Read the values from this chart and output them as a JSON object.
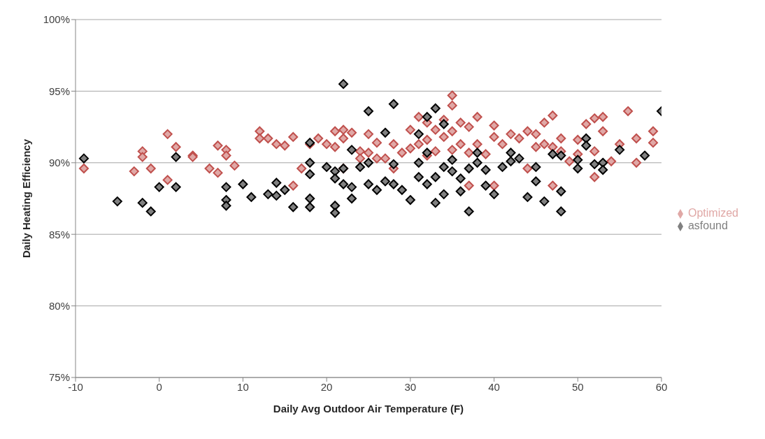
{
  "chart_data": {
    "type": "scatter",
    "xlabel": "Daily Avg Outdoor Air Temperature (F)",
    "ylabel": "Daily Heating Efficiency",
    "xlim": [
      -10,
      60
    ],
    "xticks": [
      -10,
      0,
      10,
      20,
      30,
      40,
      50,
      60
    ],
    "ylim": [
      75,
      100
    ],
    "yticks": [
      {
        "value": 75,
        "label": "75%"
      },
      {
        "value": 80,
        "label": "80%"
      },
      {
        "value": 85,
        "label": "85%"
      },
      {
        "value": 90,
        "label": "90%"
      },
      {
        "value": 95,
        "label": "95%"
      },
      {
        "value": 100,
        "label": "100%"
      }
    ],
    "grid": "y",
    "legend": "right",
    "marker": "diamond",
    "series": [
      {
        "name": "Optimized",
        "color": "#c0504d",
        "x": [
          -9,
          -3,
          -2,
          -2,
          -1,
          1,
          1,
          2,
          4,
          4,
          6,
          7,
          7,
          8,
          8,
          9,
          12,
          12,
          13,
          14,
          15,
          16,
          16,
          17,
          18,
          19,
          20,
          21,
          21,
          22,
          22,
          22,
          23,
          24,
          24,
          25,
          25,
          26,
          26,
          27,
          28,
          28,
          29,
          30,
          30,
          31,
          31,
          32,
          32,
          32,
          33,
          33,
          34,
          34,
          35,
          35,
          35,
          35,
          36,
          36,
          37,
          37,
          37,
          38,
          38,
          39,
          40,
          40,
          40,
          41,
          42,
          43,
          44,
          44,
          45,
          45,
          46,
          46,
          47,
          47,
          47,
          48,
          48,
          49,
          50,
          50,
          51,
          52,
          52,
          52,
          53,
          53,
          54,
          55,
          56,
          57,
          57,
          59,
          59
        ],
        "values": [
          89.6,
          89.4,
          90.8,
          90.4,
          89.6,
          92.0,
          88.8,
          91.1,
          90.5,
          90.4,
          89.6,
          91.2,
          89.3,
          90.9,
          90.5,
          89.8,
          92.2,
          91.7,
          91.7,
          91.3,
          91.2,
          91.8,
          88.4,
          89.6,
          91.3,
          91.7,
          91.3,
          92.2,
          91.1,
          92.3,
          91.7,
          89.6,
          92.1,
          90.8,
          90.3,
          92.0,
          90.7,
          91.4,
          90.3,
          90.3,
          91.3,
          89.6,
          90.7,
          92.3,
          91.0,
          93.2,
          91.3,
          92.8,
          91.6,
          90.5,
          92.3,
          90.8,
          93.0,
          91.8,
          94.7,
          94.0,
          92.2,
          90.9,
          92.8,
          91.3,
          92.5,
          90.7,
          88.4,
          93.2,
          91.3,
          90.6,
          92.6,
          91.8,
          88.4,
          91.3,
          92.0,
          91.7,
          92.2,
          89.6,
          92.0,
          91.1,
          92.8,
          91.3,
          93.3,
          91.1,
          88.4,
          91.7,
          90.8,
          90.1,
          91.6,
          90.6,
          92.7,
          93.1,
          89.0,
          90.8,
          92.2,
          93.2,
          90.1,
          91.3,
          93.6,
          90.0,
          91.7,
          92.2,
          91.4
        ]
      },
      {
        "name": "asfound",
        "color": "#000000",
        "x": [
          -9,
          -5,
          -2,
          -1,
          0,
          2,
          2,
          8,
          8,
          8,
          10,
          11,
          13,
          14,
          14,
          15,
          16,
          18,
          18,
          18,
          18,
          18,
          20,
          21,
          21,
          21,
          21,
          22,
          22,
          22,
          23,
          23,
          23,
          24,
          25,
          25,
          25,
          26,
          27,
          27,
          28,
          28,
          28,
          29,
          30,
          31,
          31,
          31,
          32,
          32,
          32,
          33,
          33,
          33,
          34,
          34,
          34,
          35,
          35,
          36,
          36,
          37,
          37,
          38,
          38,
          39,
          39,
          40,
          41,
          42,
          42,
          43,
          44,
          45,
          45,
          46,
          47,
          48,
          48,
          48,
          50,
          50,
          51,
          51,
          52,
          53,
          53,
          55,
          58,
          60
        ],
        "values": [
          90.3,
          87.3,
          87.2,
          86.6,
          88.3,
          90.4,
          88.3,
          88.3,
          87.4,
          87.0,
          88.5,
          87.6,
          87.8,
          88.6,
          87.7,
          88.1,
          86.9,
          91.4,
          90.0,
          89.2,
          87.5,
          86.9,
          89.7,
          89.4,
          88.9,
          87.0,
          86.5,
          95.5,
          89.6,
          88.5,
          90.9,
          88.3,
          87.5,
          89.7,
          93.6,
          90.0,
          88.5,
          88.1,
          92.1,
          88.7,
          94.1,
          89.9,
          88.5,
          88.1,
          87.4,
          92.0,
          90.0,
          89.0,
          93.2,
          90.7,
          88.5,
          93.8,
          89.0,
          87.2,
          92.7,
          89.7,
          87.8,
          90.2,
          89.4,
          88.9,
          88.0,
          89.6,
          86.6,
          90.7,
          90.0,
          88.4,
          89.5,
          87.8,
          89.7,
          90.7,
          90.1,
          90.3,
          87.6,
          89.7,
          88.7,
          87.3,
          90.6,
          90.5,
          88.0,
          86.6,
          89.6,
          90.2,
          91.7,
          91.2,
          89.9,
          90.0,
          89.5,
          90.9,
          90.5,
          93.6
        ]
      }
    ]
  }
}
